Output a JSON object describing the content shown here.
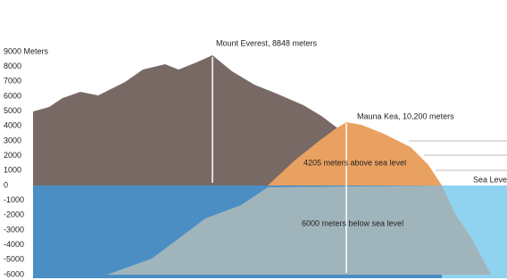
{
  "axis": {
    "ticks": [
      {
        "value": 9000,
        "label": "9000 Meters"
      },
      8000,
      7000,
      6000,
      5000,
      4000,
      3000,
      2000,
      1000,
      0,
      -1000,
      -2000,
      -3000,
      -4000,
      -5000,
      -6000
    ]
  },
  "annotations": {
    "everest": "Mount Everest, 8848 meters",
    "mauna_kea": "Mauna Kea, 10,200 meters",
    "above": "4205 meters above sea level",
    "below": "6000 meters below sea level",
    "sea_level": "Sea Level"
  }
}
